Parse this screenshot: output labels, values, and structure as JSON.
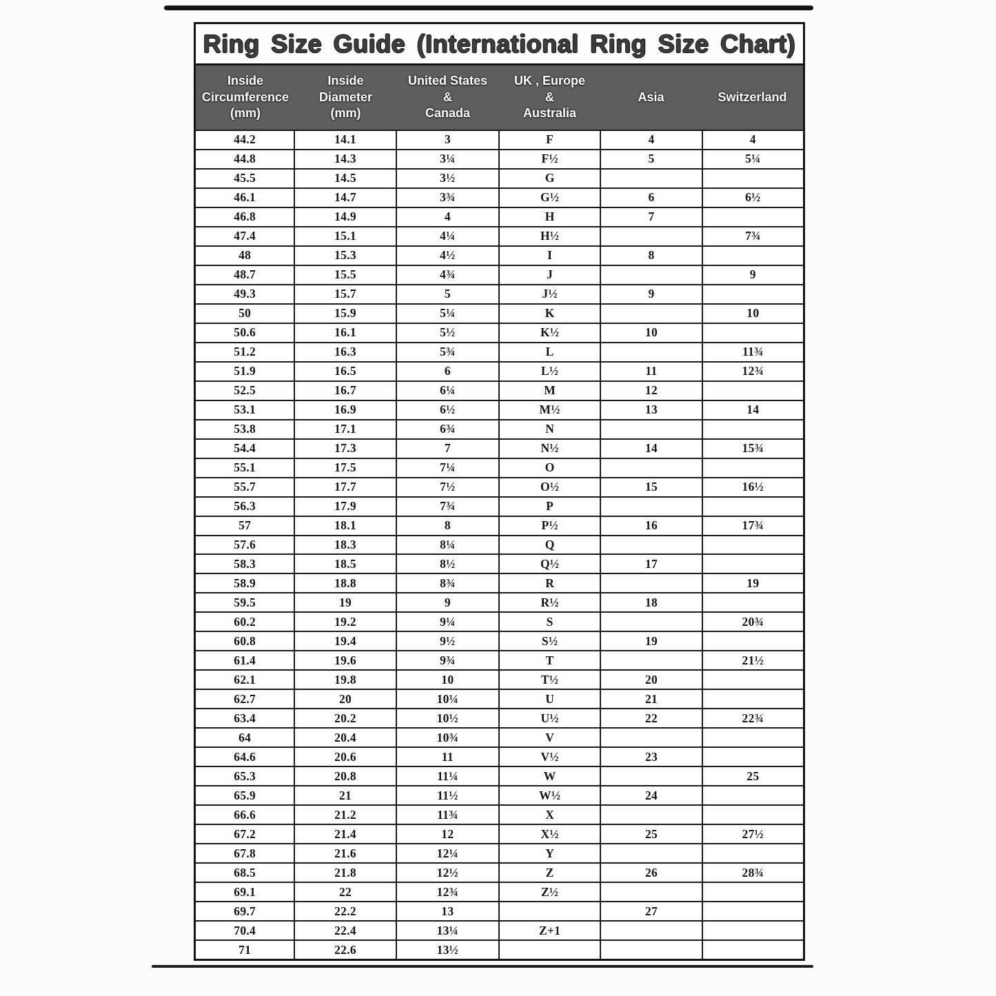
{
  "page": {
    "title": "Ring Size Guide (International Ring Size Chart)"
  },
  "colors": {
    "header_background": "#5e5e5e",
    "header_text": "#ffffff",
    "border": "#141414",
    "paper": "#fcfcfb"
  },
  "table": {
    "columns": [
      "Inside\nCircumference\n(mm)",
      "Inside\nDiameter\n(mm)",
      "United States\n&\nCanada",
      "UK , Europe\n&\nAustralia",
      "Asia",
      "Switzerland"
    ],
    "rows": [
      [
        "44.2",
        "14.1",
        "3",
        "F",
        "4",
        "4"
      ],
      [
        "44.8",
        "14.3",
        "3¼",
        "F½",
        "5",
        "5¼"
      ],
      [
        "45.5",
        "14.5",
        "3½",
        "G",
        "",
        ""
      ],
      [
        "46.1",
        "14.7",
        "3¾",
        "G½",
        "6",
        "6½"
      ],
      [
        "46.8",
        "14.9",
        "4",
        "H",
        "7",
        ""
      ],
      [
        "47.4",
        "15.1",
        "4¼",
        "H½",
        "",
        "7¾"
      ],
      [
        "48",
        "15.3",
        "4½",
        "I",
        "8",
        ""
      ],
      [
        "48.7",
        "15.5",
        "4¾",
        "J",
        "",
        "9"
      ],
      [
        "49.3",
        "15.7",
        "5",
        "J½",
        "9",
        ""
      ],
      [
        "50",
        "15.9",
        "5¼",
        "K",
        "",
        "10"
      ],
      [
        "50.6",
        "16.1",
        "5½",
        "K½",
        "10",
        ""
      ],
      [
        "51.2",
        "16.3",
        "5¾",
        "L",
        "",
        "11¾"
      ],
      [
        "51.9",
        "16.5",
        "6",
        "L½",
        "11",
        "12¾"
      ],
      [
        "52.5",
        "16.7",
        "6¼",
        "M",
        "12",
        ""
      ],
      [
        "53.1",
        "16.9",
        "6½",
        "M½",
        "13",
        "14"
      ],
      [
        "53.8",
        "17.1",
        "6¾",
        "N",
        "",
        ""
      ],
      [
        "54.4",
        "17.3",
        "7",
        "N½",
        "14",
        "15¾"
      ],
      [
        "55.1",
        "17.5",
        "7¼",
        "O",
        "",
        ""
      ],
      [
        "55.7",
        "17.7",
        "7½",
        "O½",
        "15",
        "16½"
      ],
      [
        "56.3",
        "17.9",
        "7¾",
        "P",
        "",
        ""
      ],
      [
        "57",
        "18.1",
        "8",
        "P½",
        "16",
        "17¾"
      ],
      [
        "57.6",
        "18.3",
        "8¼",
        "Q",
        "",
        ""
      ],
      [
        "58.3",
        "18.5",
        "8½",
        "Q½",
        "17",
        ""
      ],
      [
        "58.9",
        "18.8",
        "8¾",
        "R",
        "",
        "19"
      ],
      [
        "59.5",
        "19",
        "9",
        "R½",
        "18",
        ""
      ],
      [
        "60.2",
        "19.2",
        "9¼",
        "S",
        "",
        "20¾"
      ],
      [
        "60.8",
        "19.4",
        "9½",
        "S½",
        "19",
        ""
      ],
      [
        "61.4",
        "19.6",
        "9¾",
        "T",
        "",
        "21½"
      ],
      [
        "62.1",
        "19.8",
        "10",
        "T½",
        "20",
        ""
      ],
      [
        "62.7",
        "20",
        "10¼",
        "U",
        "21",
        ""
      ],
      [
        "63.4",
        "20.2",
        "10½",
        "U½",
        "22",
        "22¾"
      ],
      [
        "64",
        "20.4",
        "10¾",
        "V",
        "",
        ""
      ],
      [
        "64.6",
        "20.6",
        "11",
        "V½",
        "23",
        ""
      ],
      [
        "65.3",
        "20.8",
        "11¼",
        "W",
        "",
        "25"
      ],
      [
        "65.9",
        "21",
        "11½",
        "W½",
        "24",
        ""
      ],
      [
        "66.6",
        "21.2",
        "11¾",
        "X",
        "",
        ""
      ],
      [
        "67.2",
        "21.4",
        "12",
        "X½",
        "25",
        "27½"
      ],
      [
        "67.8",
        "21.6",
        "12¼",
        "Y",
        "",
        ""
      ],
      [
        "68.5",
        "21.8",
        "12½",
        "Z",
        "26",
        "28¾"
      ],
      [
        "69.1",
        "22",
        "12¾",
        "Z½",
        "",
        ""
      ],
      [
        "69.7",
        "22.2",
        "13",
        "",
        "27",
        ""
      ],
      [
        "70.4",
        "22.4",
        "13¼",
        "Z+1",
        "",
        ""
      ],
      [
        "71",
        "22.6",
        "13½",
        "",
        "",
        ""
      ]
    ]
  }
}
